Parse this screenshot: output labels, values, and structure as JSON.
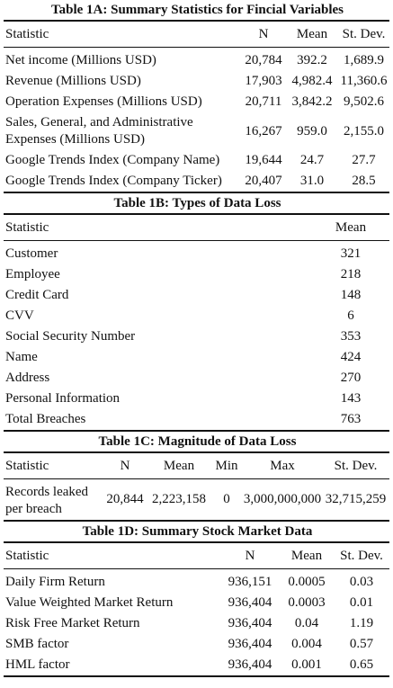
{
  "table1a": {
    "title": "Table 1A: Summary Statistics for Fincial Variables",
    "headers": [
      "Statistic",
      "N",
      "Mean",
      "St. Dev."
    ],
    "rows": [
      {
        "label": "Net income (Millions USD)",
        "n": "20,784",
        "mean": "392.2",
        "sd": "1,689.9"
      },
      {
        "label": "Revenue (Millions USD)",
        "n": "17,903",
        "mean": "4,982.4",
        "sd": "11,360.6"
      },
      {
        "label": "Operation Expenses (Millions USD)",
        "n": "20,711",
        "mean": "3,842.2",
        "sd": "9,502.6"
      },
      {
        "label": "Sales, General, and Administrative Expenses (Millions USD)",
        "n": "16,267",
        "mean": "959.0",
        "sd": "2,155.0"
      },
      {
        "label": "Google Trends Index (Company Name)",
        "n": "19,644",
        "mean": "24.7",
        "sd": "27.7"
      },
      {
        "label": "Google Trends Index (Company Ticker)",
        "n": "20,407",
        "mean": "31.0",
        "sd": "28.5"
      }
    ]
  },
  "table1b": {
    "title": "Table 1B: Types of Data Loss",
    "headers": [
      "Statistic",
      "Mean"
    ],
    "rows": [
      {
        "label": "Customer",
        "mean": "321"
      },
      {
        "label": "Employee",
        "mean": "218"
      },
      {
        "label": "Credit Card",
        "mean": "148"
      },
      {
        "label": "CVV",
        "mean": "6"
      },
      {
        "label": "Social Security Number",
        "mean": "353"
      },
      {
        "label": "Name",
        "mean": "424"
      },
      {
        "label": "Address",
        "mean": "270"
      },
      {
        "label": "Personal Information",
        "mean": "143"
      },
      {
        "label": "Total Breaches",
        "mean": "763"
      }
    ]
  },
  "table1c": {
    "title": "Table 1C: Magnitude of Data Loss",
    "headers": [
      "Statistic",
      "N",
      "Mean",
      "Min",
      "Max",
      "St. Dev."
    ],
    "rows": [
      {
        "label": "Records leaked per breach",
        "n": "20,844",
        "mean": "2,223,158",
        "min": "0",
        "max": "3,000,000,000",
        "sd": "32,715,259"
      }
    ]
  },
  "table1d": {
    "title": "Table 1D: Summary Stock Market Data",
    "headers": [
      "Statistic",
      "N",
      "Mean",
      "St. Dev."
    ],
    "rows": [
      {
        "label": "Daily Firm Return",
        "n": "936,151",
        "mean": "0.0005",
        "sd": "0.03"
      },
      {
        "label": "Value Weighted Market Return",
        "n": "936,404",
        "mean": "0.0003",
        "sd": "0.01"
      },
      {
        "label": "Risk Free Market Return",
        "n": "936,404",
        "mean": "0.04",
        "sd": "1.19"
      },
      {
        "label": "SMB factor",
        "n": "936,404",
        "mean": "0.004",
        "sd": "0.57"
      },
      {
        "label": "HML factor",
        "n": "936,404",
        "mean": "0.001",
        "sd": "0.65"
      }
    ]
  }
}
